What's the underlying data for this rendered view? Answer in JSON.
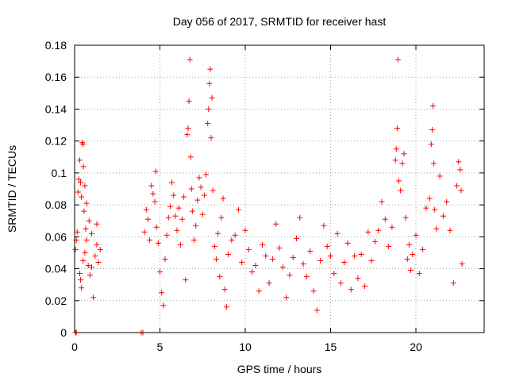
{
  "chart_data": {
    "type": "scatter",
    "title": "Day 056 of 2017, SRMTID for receiver hast",
    "xlabel": "GPS time / hours",
    "ylabel": "SRMTID / TECUs",
    "xlim": [
      0,
      24.0
    ],
    "ylim": [
      0,
      0.18
    ],
    "xticks": [
      0,
      5,
      10,
      15,
      20
    ],
    "xtick_labels": [
      "0",
      "5",
      "10",
      "15",
      "20"
    ],
    "yticks": [
      0,
      0.02,
      0.04,
      0.06,
      0.08,
      0.1,
      0.12,
      0.14,
      0.16,
      0.18
    ],
    "ytick_labels": [
      "0",
      "0.02",
      "0.04",
      "0.06",
      "0.08",
      "0.1",
      "0.12",
      "0.14",
      "0.16",
      "0.18"
    ],
    "grid": true,
    "marker": "+",
    "colors": {
      "series": "#ff0000",
      "grid": "#a0a0a0",
      "axes": "#000000"
    },
    "series": [
      {
        "values": [
          [
            0.05,
            0.0
          ],
          [
            0.1,
            0.0
          ],
          [
            0.05,
            0.052
          ],
          [
            0.1,
            0.058
          ],
          [
            0.15,
            0.063
          ],
          [
            0.2,
            0.088
          ],
          [
            0.25,
            0.096
          ],
          [
            0.3,
            0.108
          ],
          [
            0.35,
            0.094
          ],
          [
            0.4,
            0.085
          ],
          [
            0.45,
            0.119
          ],
          [
            0.5,
            0.118
          ],
          [
            0.52,
            0.104
          ],
          [
            0.55,
            0.076
          ],
          [
            0.6,
            0.092
          ],
          [
            0.65,
            0.065
          ],
          [
            0.7,
            0.081
          ],
          [
            0.3,
            0.037
          ],
          [
            0.35,
            0.033
          ],
          [
            0.4,
            0.028
          ],
          [
            0.5,
            0.045
          ],
          [
            0.6,
            0.05
          ],
          [
            0.7,
            0.058
          ],
          [
            0.8,
            0.042
          ],
          [
            0.9,
            0.036
          ],
          [
            1.0,
            0.041
          ],
          [
            1.1,
            0.022
          ],
          [
            1.2,
            0.048
          ],
          [
            1.3,
            0.055
          ],
          [
            1.4,
            0.044
          ],
          [
            1.5,
            0.052
          ],
          [
            1.3,
            0.068
          ],
          [
            1.0,
            0.062
          ],
          [
            0.85,
            0.07
          ],
          [
            3.9,
            0.0
          ],
          [
            4.0,
            0.0
          ],
          [
            4.1,
            0.063
          ],
          [
            4.2,
            0.077
          ],
          [
            4.3,
            0.071
          ],
          [
            4.4,
            0.058
          ],
          [
            4.5,
            0.092
          ],
          [
            4.6,
            0.087
          ],
          [
            4.7,
            0.082
          ],
          [
            4.75,
            0.101
          ],
          [
            4.8,
            0.066
          ],
          [
            4.9,
            0.056
          ],
          [
            5.0,
            0.038
          ],
          [
            5.1,
            0.025
          ],
          [
            5.2,
            0.017
          ],
          [
            5.3,
            0.046
          ],
          [
            5.4,
            0.061
          ],
          [
            5.5,
            0.072
          ],
          [
            5.6,
            0.079
          ],
          [
            5.7,
            0.094
          ],
          [
            5.8,
            0.086
          ],
          [
            5.9,
            0.073
          ],
          [
            6.0,
            0.064
          ],
          [
            6.1,
            0.078
          ],
          [
            6.2,
            0.055
          ],
          [
            6.3,
            0.071
          ],
          [
            6.4,
            0.085
          ],
          [
            6.5,
            0.033
          ],
          [
            6.6,
            0.124
          ],
          [
            6.65,
            0.128
          ],
          [
            6.7,
            0.145
          ],
          [
            6.75,
            0.171
          ],
          [
            6.8,
            0.11
          ],
          [
            6.85,
            0.09
          ],
          [
            6.9,
            0.076
          ],
          [
            7.0,
            0.058
          ],
          [
            7.1,
            0.067
          ],
          [
            7.2,
            0.083
          ],
          [
            7.3,
            0.097
          ],
          [
            7.4,
            0.091
          ],
          [
            7.5,
            0.074
          ],
          [
            7.6,
            0.086
          ],
          [
            7.7,
            0.099
          ],
          [
            7.8,
            0.131
          ],
          [
            7.85,
            0.14
          ],
          [
            7.9,
            0.156
          ],
          [
            7.95,
            0.165
          ],
          [
            8.0,
            0.122
          ],
          [
            8.05,
            0.147
          ],
          [
            8.1,
            0.089
          ],
          [
            8.2,
            0.054
          ],
          [
            8.3,
            0.046
          ],
          [
            8.4,
            0.062
          ],
          [
            8.5,
            0.035
          ],
          [
            8.6,
            0.072
          ],
          [
            8.7,
            0.084
          ],
          [
            8.8,
            0.027
          ],
          [
            8.9,
            0.016
          ],
          [
            9.0,
            0.049
          ],
          [
            9.2,
            0.058
          ],
          [
            9.4,
            0.061
          ],
          [
            9.6,
            0.077
          ],
          [
            9.8,
            0.044
          ],
          [
            10.0,
            0.064
          ],
          [
            10.2,
            0.052
          ],
          [
            10.4,
            0.038
          ],
          [
            10.6,
            0.042
          ],
          [
            10.8,
            0.026
          ],
          [
            11.0,
            0.055
          ],
          [
            11.2,
            0.048
          ],
          [
            11.4,
            0.031
          ],
          [
            11.6,
            0.046
          ],
          [
            11.8,
            0.068
          ],
          [
            12.0,
            0.053
          ],
          [
            12.2,
            0.041
          ],
          [
            12.4,
            0.022
          ],
          [
            12.6,
            0.036
          ],
          [
            12.8,
            0.047
          ],
          [
            13.0,
            0.059
          ],
          [
            13.2,
            0.072
          ],
          [
            13.4,
            0.043
          ],
          [
            13.6,
            0.035
          ],
          [
            13.8,
            0.051
          ],
          [
            14.0,
            0.026
          ],
          [
            14.2,
            0.014
          ],
          [
            14.4,
            0.045
          ],
          [
            14.6,
            0.067
          ],
          [
            14.8,
            0.054
          ],
          [
            15.0,
            0.048
          ],
          [
            15.2,
            0.037
          ],
          [
            15.4,
            0.062
          ],
          [
            15.6,
            0.031
          ],
          [
            15.8,
            0.044
          ],
          [
            16.0,
            0.056
          ],
          [
            16.2,
            0.027
          ],
          [
            16.4,
            0.048
          ],
          [
            16.6,
            0.034
          ],
          [
            16.8,
            0.049
          ],
          [
            17.0,
            0.029
          ],
          [
            17.2,
            0.063
          ],
          [
            17.4,
            0.045
          ],
          [
            17.6,
            0.057
          ],
          [
            17.8,
            0.064
          ],
          [
            18.0,
            0.082
          ],
          [
            18.2,
            0.071
          ],
          [
            18.4,
            0.054
          ],
          [
            18.6,
            0.066
          ],
          [
            18.8,
            0.108
          ],
          [
            18.85,
            0.115
          ],
          [
            18.9,
            0.128
          ],
          [
            18.95,
            0.171
          ],
          [
            19.0,
            0.095
          ],
          [
            19.1,
            0.089
          ],
          [
            19.2,
            0.106
          ],
          [
            19.3,
            0.112
          ],
          [
            19.4,
            0.072
          ],
          [
            19.5,
            0.046
          ],
          [
            19.6,
            0.055
          ],
          [
            19.7,
            0.039
          ],
          [
            19.8,
            0.049
          ],
          [
            20.0,
            0.061
          ],
          [
            20.2,
            0.037
          ],
          [
            20.4,
            0.052
          ],
          [
            20.6,
            0.078
          ],
          [
            20.8,
            0.084
          ],
          [
            20.9,
            0.118
          ],
          [
            20.95,
            0.127
          ],
          [
            21.0,
            0.142
          ],
          [
            21.05,
            0.106
          ],
          [
            21.1,
            0.077
          ],
          [
            21.2,
            0.065
          ],
          [
            21.4,
            0.098
          ],
          [
            21.6,
            0.073
          ],
          [
            21.8,
            0.082
          ],
          [
            22.0,
            0.064
          ],
          [
            22.2,
            0.031
          ],
          [
            22.4,
            0.092
          ],
          [
            22.5,
            0.107
          ],
          [
            22.6,
            0.102
          ],
          [
            22.65,
            0.089
          ],
          [
            22.7,
            0.043
          ]
        ]
      }
    ]
  }
}
